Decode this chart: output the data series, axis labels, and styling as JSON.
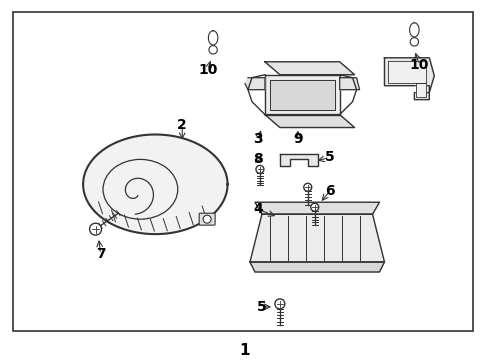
{
  "bg_color": "#ffffff",
  "border_color": "#333333",
  "line_color": "#333333",
  "label_color": "#000000",
  "fig_w": 4.9,
  "fig_h": 3.6,
  "dpi": 100
}
